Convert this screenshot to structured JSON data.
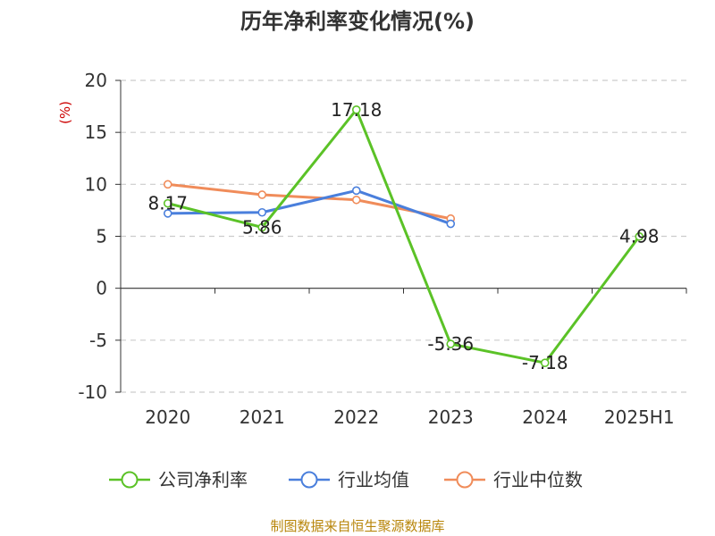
{
  "chart_data": {
    "type": "line",
    "title": "历年净利率变化情况(%)",
    "ylabel": "(%)",
    "categories": [
      "2020",
      "2021",
      "2022",
      "2023",
      "2024",
      "2025H1"
    ],
    "ylim": [
      -10,
      20
    ],
    "yticks": [
      20,
      15,
      10,
      5,
      0,
      -5,
      -10
    ],
    "grid": true,
    "legend_position": "bottom",
    "series": [
      {
        "name": "公司净利率",
        "color": "#5bc227",
        "values": [
          8.17,
          5.86,
          17.18,
          -5.36,
          -7.18,
          4.98
        ],
        "labels": [
          "8.17",
          "5.86",
          "17.18",
          "-5.36",
          "-7.18",
          "4.98"
        ]
      },
      {
        "name": "行业均值",
        "color": "#4a7fdc",
        "values": [
          7.2,
          7.3,
          9.4,
          6.2,
          null,
          null
        ]
      },
      {
        "name": "行业中位数",
        "color": "#f08c5a",
        "values": [
          10.0,
          9.0,
          8.5,
          6.7,
          null,
          null
        ]
      }
    ]
  },
  "footer": {
    "source": "制图数据来自恒生聚源数据库"
  }
}
